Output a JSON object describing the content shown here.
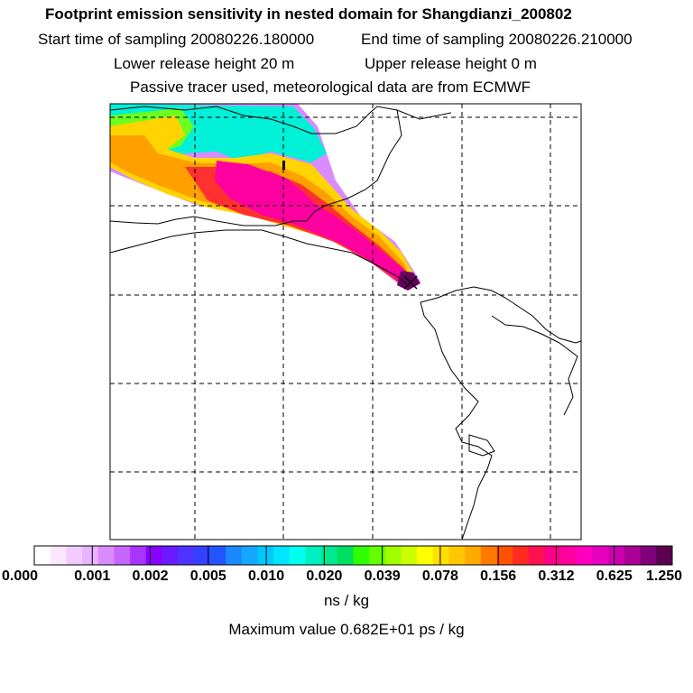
{
  "title": "Footprint emission sensitivity in nested domain for Shangdianzi_200802",
  "start_time": "Start time of sampling 20080226.180000",
  "end_time": "End time of sampling 20080226.210000",
  "lower_release": "Lower release height   20 m",
  "upper_release": "Upper release height    0 m",
  "tracer_note": "Passive tracer used, meteorological data are from ECMWF",
  "colorbar": {
    "ticks": [
      "0.000",
      "0.001",
      "0.002",
      "0.005",
      "0.010",
      "0.020",
      "0.039",
      "0.078",
      "0.156",
      "0.312",
      "0.625",
      "1.250"
    ],
    "unit": "ns / kg",
    "colors": [
      "#ffffff",
      "#fbe6ff",
      "#f2ccff",
      "#e9b3ff",
      "#d98cff",
      "#c766ff",
      "#a933ff",
      "#8a00ff",
      "#6a1aff",
      "#4d33ff",
      "#3340ff",
      "#2255ff",
      "#1a88ff",
      "#12a8ff",
      "#00c8ff",
      "#00e6ff",
      "#00ffee",
      "#00f0c0",
      "#00e890",
      "#00e060",
      "#30ff00",
      "#66ff00",
      "#a0ff00",
      "#ccff00",
      "#ffff00",
      "#ffe000",
      "#ffc800",
      "#ffaa00",
      "#ff7a00",
      "#ff5000",
      "#ff2a20",
      "#ff1050",
      "#ff0088",
      "#ff00a0",
      "#ff00c0",
      "#e800c0",
      "#cc00b0",
      "#aa0098",
      "#80007a",
      "#5a004f"
    ]
  },
  "max_value": "Maximum value  0.682E+01 ps / kg"
}
